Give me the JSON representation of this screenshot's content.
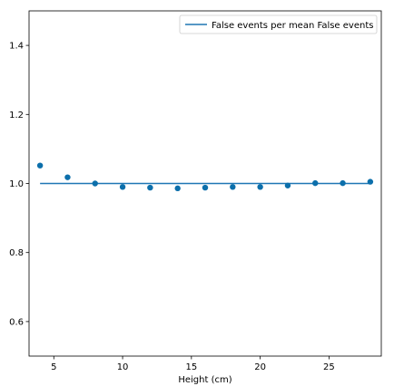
{
  "chart_data": {
    "type": "scatter",
    "title": "",
    "xlabel": "Height (cm)",
    "ylabel": "",
    "xlim": [
      3.2,
      28.8
    ],
    "ylim": [
      0.5,
      1.5
    ],
    "xticks": [
      5,
      10,
      15,
      20,
      25
    ],
    "yticks": [
      0.6,
      0.8,
      1.0,
      1.2,
      1.4
    ],
    "xtick_labels": [
      "5",
      "10",
      "15",
      "20",
      "25"
    ],
    "ytick_labels": [
      "0.6",
      "0.8",
      "1.0",
      "1.2",
      "1.4"
    ],
    "grid": false,
    "legend_position": "top-right",
    "line_series": {
      "name": "False events per mean False events",
      "x": [
        4,
        28
      ],
      "y": [
        1.0,
        1.0
      ],
      "color": "#1f77b4"
    },
    "scatter_series": {
      "x": [
        4,
        6,
        8,
        10,
        12,
        14,
        16,
        18,
        20,
        22,
        24,
        26,
        28
      ],
      "y": [
        1.052,
        1.018,
        1.0,
        0.99,
        0.988,
        0.986,
        0.988,
        0.99,
        0.99,
        0.994,
        1.001,
        1.001,
        1.005
      ],
      "color": "#0c6fab"
    }
  }
}
